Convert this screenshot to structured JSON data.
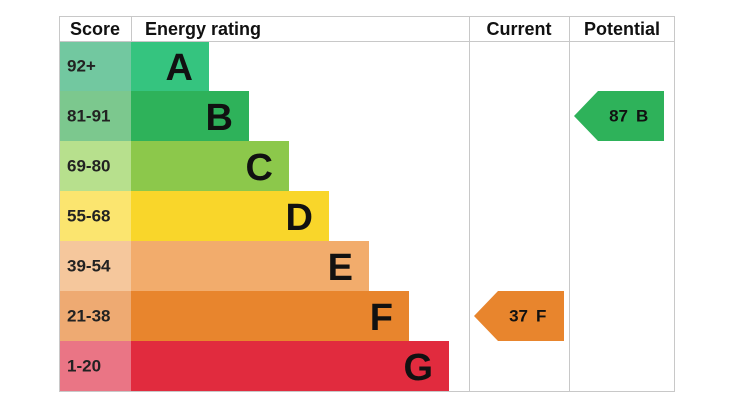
{
  "header": {
    "score": "Score",
    "rating": "Energy rating",
    "current": "Current",
    "potential": "Potential"
  },
  "bands": [
    {
      "score": "92+",
      "letter": "A",
      "color": "#35c47f",
      "score_color": "#72c8a0"
    },
    {
      "score": "81-91",
      "letter": "B",
      "color": "#2eb25a",
      "score_color": "#7cc88e"
    },
    {
      "score": "69-80",
      "letter": "C",
      "color": "#8cc84b",
      "score_color": "#b7e08d"
    },
    {
      "score": "55-68",
      "letter": "D",
      "color": "#f9d62a",
      "score_color": "#fbe56f"
    },
    {
      "score": "39-54",
      "letter": "E",
      "color": "#f2ac6c",
      "score_color": "#f5c79c"
    },
    {
      "score": "21-38",
      "letter": "F",
      "color": "#e8852d",
      "score_color": "#eeaa72"
    },
    {
      "score": "1-20",
      "letter": "G",
      "color": "#e12b3e",
      "score_color": "#ea7585"
    }
  ],
  "current": {
    "value": 37,
    "rating": "F"
  },
  "potential": {
    "value": 87,
    "rating": "B"
  }
}
